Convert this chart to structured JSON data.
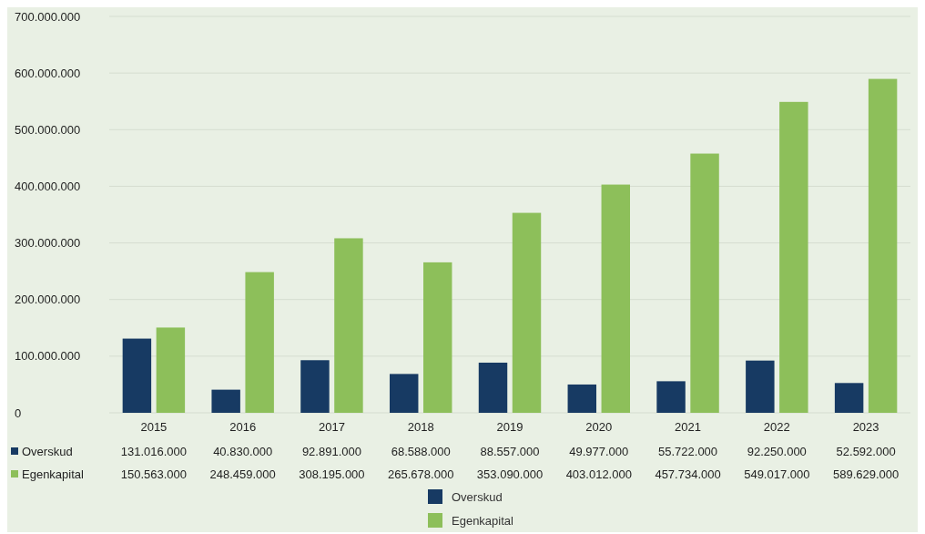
{
  "chart_data": {
    "type": "bar",
    "categories": [
      "2015",
      "2016",
      "2017",
      "2018",
      "2019",
      "2020",
      "2021",
      "2022",
      "2023"
    ],
    "series": [
      {
        "name": "Overskud",
        "color": "#173a63",
        "values": [
          131016000,
          40830000,
          92891000,
          68588000,
          88557000,
          49977000,
          55722000,
          92250000,
          52592000
        ],
        "value_labels": [
          "131.016.000",
          "40.830.000",
          "92.891.000",
          "68.588.000",
          "88.557.000",
          "49.977.000",
          "55.722.000",
          "92.250.000",
          "52.592.000"
        ]
      },
      {
        "name": "Egenkapital",
        "color": "#8dbf5a",
        "values": [
          150563000,
          248459000,
          308195000,
          265678000,
          353090000,
          403012000,
          457734000,
          549017000,
          589629000
        ],
        "value_labels": [
          "150.563.000",
          "248.459.000",
          "308.195.000",
          "265.678.000",
          "353.090.000",
          "403.012.000",
          "457.734.000",
          "549.017.000",
          "589.629.000"
        ]
      }
    ],
    "ylim": [
      0,
      700000000
    ],
    "yticks": [
      0,
      {
        "value": 100000000,
        "label": "100.000.000"
      },
      {
        "value": 200000000,
        "label": "200.000.000"
      },
      {
        "value": 300000000,
        "label": "300.000.000"
      },
      {
        "value": 400000000,
        "label": "400.000.000"
      },
      {
        "value": 500000000,
        "label": "500.000.000"
      },
      {
        "value": 600000000,
        "label": "600.000.000"
      },
      {
        "value": 700000000,
        "label": "700.000.000"
      }
    ],
    "grid": "y",
    "legend": "bottom"
  }
}
